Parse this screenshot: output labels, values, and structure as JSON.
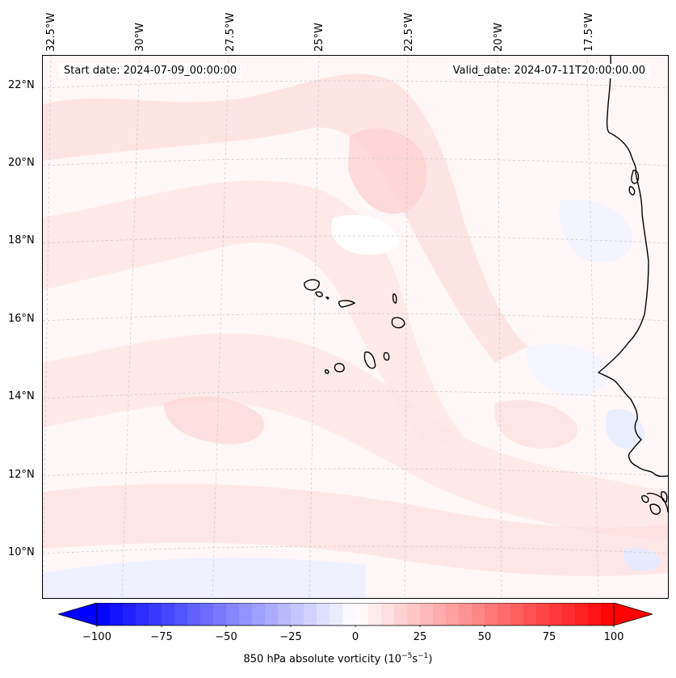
{
  "map": {
    "start_date": "Start date: 2024-07-09_00:00:00",
    "valid_date": "Valid_date: 2024-07-11T20:00:00.00",
    "longitude_labels": [
      "32.5°W",
      "30°W",
      "27.5°W",
      "25°W",
      "22.5°W",
      "20°W",
      "17.5°W"
    ],
    "latitude_labels": [
      "22°N",
      "20°N",
      "18°N",
      "16°N",
      "14°N",
      "12°N",
      "10°N"
    ],
    "field": "850 hPa absolute vorticity",
    "colors": {
      "land_outline": "#000000",
      "gridline": "#c8c8c8",
      "positive": "#ff0000",
      "negative": "#0000ff",
      "background_tint": "#fff7f7"
    }
  },
  "colorbar": {
    "ticks": [
      "−100",
      "−75",
      "−50",
      "−25",
      "0",
      "25",
      "50",
      "75",
      "100"
    ],
    "tick_values": [
      -100,
      -75,
      -50,
      -25,
      0,
      25,
      50,
      75,
      100
    ],
    "range": [
      -100,
      100
    ],
    "levels": 41,
    "label_text": "850 hPa absolute vorticity (10",
    "label_exp1": "−5",
    "label_mid": "s",
    "label_exp2": "−1",
    "label_end": ")",
    "colormap": "bwr"
  }
}
